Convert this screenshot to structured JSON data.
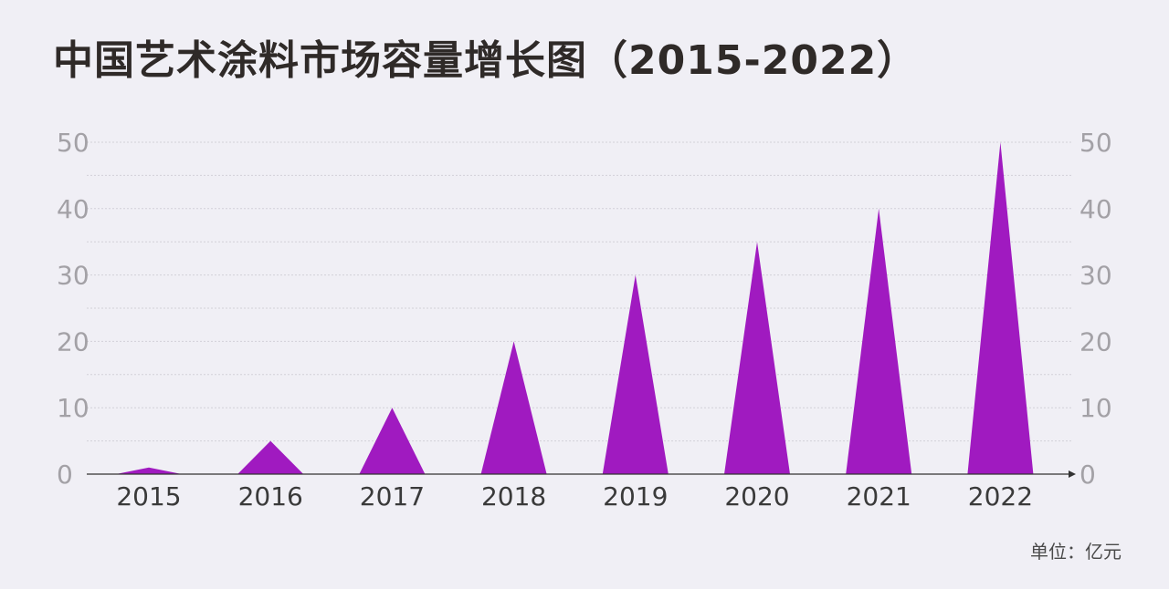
{
  "title": "中国艺术涂料市场容量增长图（2015-2022）",
  "unit_note": "单位：亿元",
  "colors": {
    "background": "#f0eff5",
    "series": "#a01ac0",
    "title": "#2f2a28",
    "tick": "#a3a1a6",
    "category": "#3a3a3a",
    "axis": "#333333"
  },
  "chart_data": {
    "type": "bar",
    "shape": "triangle",
    "title": "中国艺术涂料市场容量增长图（2015-2022）",
    "xlabel": "",
    "ylabel": "",
    "categories": [
      "2015",
      "2016",
      "2017",
      "2018",
      "2019",
      "2020",
      "2021",
      "2022"
    ],
    "series": [
      {
        "values": [
          1,
          5,
          10,
          20,
          30,
          35,
          40,
          50
        ]
      }
    ],
    "ylim": [
      0,
      50
    ],
    "yticks": [
      "0",
      "10",
      "20",
      "30",
      "40",
      "50"
    ],
    "secondary_axis": "right",
    "grid": true,
    "unit": "单位：亿元"
  }
}
